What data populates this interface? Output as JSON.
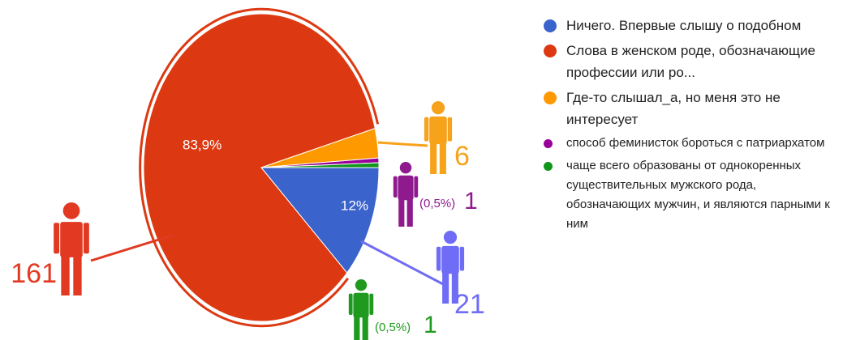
{
  "chart_data": {
    "type": "pie",
    "categories": [
      "Ничего. Впервые слышу о подобном",
      "Слова в женском роде, обозначающие профессии или ро...",
      "Где-то слышал_а, но меня это не интересует",
      "способ феминисток бороться с патриархатом",
      "чаще всего образованы от однокоренных существительных мужского рода, обозначающих мужчин, и являются парными к ним"
    ],
    "values": [
      12,
      83.9,
      3.1,
      0.5,
      0.5
    ],
    "value_labels": [
      "12%",
      "83,9%",
      null,
      "(0,5%)",
      "(0,5%)"
    ],
    "counts": [
      21,
      161,
      6,
      1,
      1
    ],
    "colors": [
      "#3b63cc",
      "#dc3912",
      "#ff9900",
      "#990099",
      "#109618"
    ],
    "icon_colors": [
      "#6f6cf5",
      "#e23a22",
      "#f7a21b",
      "#8e1a8e",
      "#1f9a1f"
    ]
  }
}
